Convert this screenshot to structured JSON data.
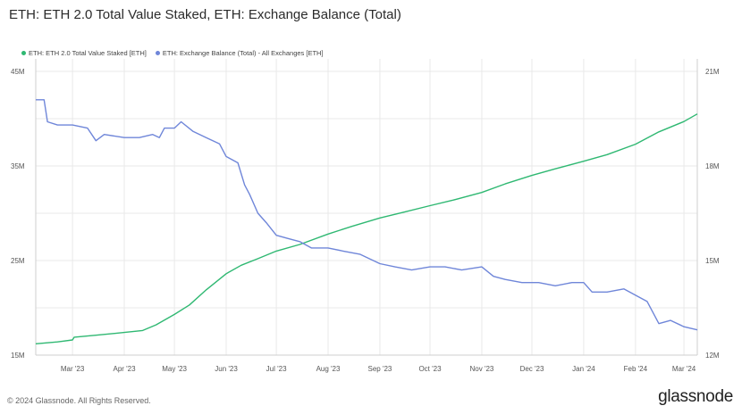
{
  "title": "ETH: ETH 2.0 Total Value Staked, ETH: Exchange Balance (Total)",
  "footer": "© 2024 Glassnode. All Rights Reserved.",
  "brand": "glassnode",
  "colors": {
    "staked": "#2fb872",
    "exchange": "#6f86d9",
    "grid": "#e9e9e9",
    "axis": "#cfcfcf"
  },
  "chart_data": {
    "type": "line",
    "title": "ETH: ETH 2.0 Total Value Staked, ETH: Exchange Balance (Total)",
    "x_ticks": [
      "Mar '23",
      "Apr '23",
      "May '23",
      "Jun '23",
      "Jul '23",
      "Aug '23",
      "Sep '23",
      "Oct '23",
      "Nov '23",
      "Dec '23",
      "Jan '24",
      "Feb '24",
      "Mar '24"
    ],
    "x_range": [
      "2023-02-07",
      "2024-03-09"
    ],
    "y_left": {
      "ticks": [
        "15M",
        "25M",
        "35M",
        "45M"
      ],
      "values": [
        15000000,
        25000000,
        35000000,
        45000000
      ],
      "range": [
        15000000,
        45000000
      ]
    },
    "y_right": {
      "ticks": [
        "12M",
        "15M",
        "18M",
        "21M"
      ],
      "values": [
        12000000,
        15000000,
        18000000,
        21000000
      ],
      "range": [
        12000000,
        21000000
      ]
    },
    "grid": true,
    "legend_position": "top-left",
    "series": [
      {
        "name": "ETH: ETH 2.0 Total Value Staked [ETH]",
        "axis": "left",
        "color": "#2fb872",
        "points": [
          [
            "2023-02-07",
            16.2
          ],
          [
            "2023-02-20",
            16.4
          ],
          [
            "2023-03-01",
            16.6
          ],
          [
            "2023-03-02",
            16.9
          ],
          [
            "2023-03-15",
            17.1
          ],
          [
            "2023-04-01",
            17.4
          ],
          [
            "2023-04-12",
            17.6
          ],
          [
            "2023-04-20",
            18.2
          ],
          [
            "2023-05-01",
            19.3
          ],
          [
            "2023-05-10",
            20.3
          ],
          [
            "2023-05-20",
            21.9
          ],
          [
            "2023-06-01",
            23.6
          ],
          [
            "2023-06-10",
            24.5
          ],
          [
            "2023-06-20",
            25.2
          ],
          [
            "2023-07-01",
            26.0
          ],
          [
            "2023-07-15",
            26.7
          ],
          [
            "2023-08-01",
            27.8
          ],
          [
            "2023-08-15",
            28.6
          ],
          [
            "2023-09-01",
            29.5
          ],
          [
            "2023-09-15",
            30.1
          ],
          [
            "2023-10-01",
            30.8
          ],
          [
            "2023-10-15",
            31.4
          ],
          [
            "2023-11-01",
            32.2
          ],
          [
            "2023-11-15",
            33.1
          ],
          [
            "2023-12-01",
            34.0
          ],
          [
            "2023-12-15",
            34.7
          ],
          [
            "2024-01-01",
            35.5
          ],
          [
            "2024-01-15",
            36.2
          ],
          [
            "2024-02-01",
            37.3
          ],
          [
            "2024-02-15",
            38.6
          ],
          [
            "2024-03-01",
            39.7
          ],
          [
            "2024-03-09",
            40.5
          ]
        ]
      },
      {
        "name": "ETH: Exchange Balance (Total) - All Exchanges [ETH]",
        "axis": "right",
        "color": "#6f86d9",
        "points": [
          [
            "2023-02-07",
            20.1
          ],
          [
            "2023-02-12",
            20.1
          ],
          [
            "2023-02-14",
            19.4
          ],
          [
            "2023-02-20",
            19.3
          ],
          [
            "2023-03-01",
            19.3
          ],
          [
            "2023-03-10",
            19.2
          ],
          [
            "2023-03-15",
            18.8
          ],
          [
            "2023-03-20",
            19.0
          ],
          [
            "2023-04-01",
            18.9
          ],
          [
            "2023-04-10",
            18.9
          ],
          [
            "2023-04-18",
            19.0
          ],
          [
            "2023-04-22",
            18.9
          ],
          [
            "2023-04-25",
            19.2
          ],
          [
            "2023-05-01",
            19.2
          ],
          [
            "2023-05-05",
            19.4
          ],
          [
            "2023-05-12",
            19.1
          ],
          [
            "2023-05-20",
            18.9
          ],
          [
            "2023-05-28",
            18.7
          ],
          [
            "2023-06-01",
            18.3
          ],
          [
            "2023-06-08",
            18.1
          ],
          [
            "2023-06-12",
            17.4
          ],
          [
            "2023-06-15",
            17.1
          ],
          [
            "2023-06-20",
            16.5
          ],
          [
            "2023-06-25",
            16.2
          ],
          [
            "2023-07-01",
            15.8
          ],
          [
            "2023-07-08",
            15.7
          ],
          [
            "2023-07-15",
            15.6
          ],
          [
            "2023-07-22",
            15.4
          ],
          [
            "2023-08-01",
            15.4
          ],
          [
            "2023-08-10",
            15.3
          ],
          [
            "2023-08-20",
            15.2
          ],
          [
            "2023-09-01",
            14.9
          ],
          [
            "2023-09-10",
            14.8
          ],
          [
            "2023-09-20",
            14.7
          ],
          [
            "2023-10-01",
            14.8
          ],
          [
            "2023-10-10",
            14.8
          ],
          [
            "2023-10-20",
            14.7
          ],
          [
            "2023-11-01",
            14.8
          ],
          [
            "2023-11-08",
            14.5
          ],
          [
            "2023-11-15",
            14.4
          ],
          [
            "2023-11-25",
            14.3
          ],
          [
            "2023-12-05",
            14.3
          ],
          [
            "2023-12-15",
            14.2
          ],
          [
            "2023-12-25",
            14.3
          ],
          [
            "2024-01-01",
            14.3
          ],
          [
            "2024-01-06",
            14.0
          ],
          [
            "2024-01-15",
            14.0
          ],
          [
            "2024-01-25",
            14.1
          ],
          [
            "2024-02-01",
            13.9
          ],
          [
            "2024-02-08",
            13.7
          ],
          [
            "2024-02-15",
            13.0
          ],
          [
            "2024-02-22",
            13.1
          ],
          [
            "2024-03-01",
            12.9
          ],
          [
            "2024-03-09",
            12.8
          ]
        ]
      }
    ]
  }
}
